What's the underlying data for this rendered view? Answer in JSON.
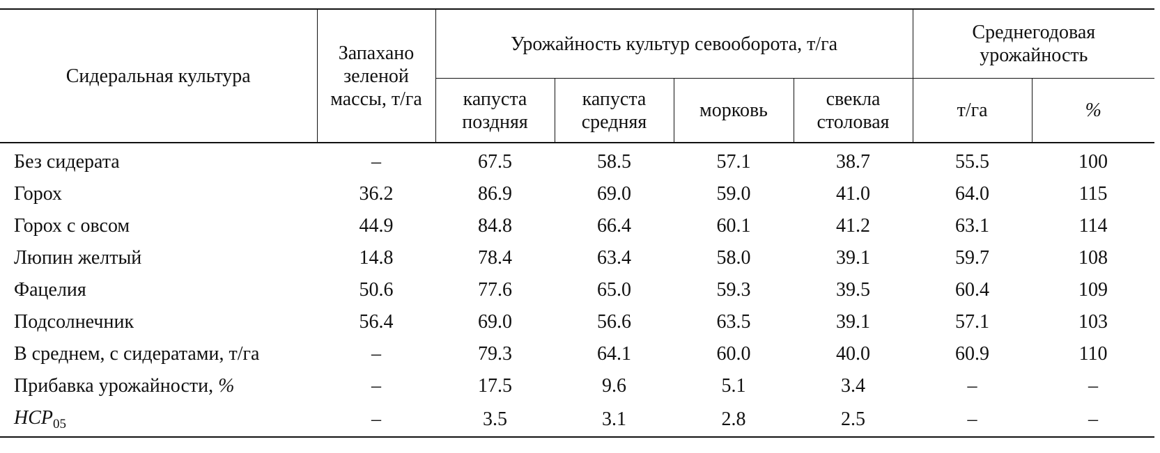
{
  "header": {
    "col_culture": "Сидеральная культура",
    "col_green_mass": "Запахано зеленой массы, т/га",
    "group_yield": "Урожайность культур севооборота, т/га",
    "group_avg": "Среднегодовая урожайность",
    "sub_cabbage_late": "капуста поздняя",
    "sub_cabbage_mid": "капуста средняя",
    "sub_carrot": "морковь",
    "sub_beet": "свекла столовая",
    "sub_tha": "т/га",
    "sub_pct": "%"
  },
  "rows": [
    {
      "name": "Без сидерата",
      "mass": "–",
      "c1": "67.5",
      "c2": "58.5",
      "c3": "57.1",
      "c4": "38.7",
      "avg": "55.5",
      "pct": "100"
    },
    {
      "name": "Горох",
      "mass": "36.2",
      "c1": "86.9",
      "c2": "69.0",
      "c3": "59.0",
      "c4": "41.0",
      "avg": "64.0",
      "pct": "115"
    },
    {
      "name": "Горох с овсом",
      "mass": "44.9",
      "c1": "84.8",
      "c2": "66.4",
      "c3": "60.1",
      "c4": "41.2",
      "avg": "63.1",
      "pct": "114"
    },
    {
      "name": "Люпин желтый",
      "mass": "14.8",
      "c1": "78.4",
      "c2": "63.4",
      "c3": "58.0",
      "c4": "39.1",
      "avg": "59.7",
      "pct": "108"
    },
    {
      "name": "Фацелия",
      "mass": "50.6",
      "c1": "77.6",
      "c2": "65.0",
      "c3": "59.3",
      "c4": "39.5",
      "avg": "60.4",
      "pct": "109"
    },
    {
      "name": "Подсолнечник",
      "mass": "56.4",
      "c1": "69.0",
      "c2": "56.6",
      "c3": "63.5",
      "c4": "39.1",
      "avg": "57.1",
      "pct": "103"
    },
    {
      "name": "В среднем, с сидератами, т/га",
      "mass": "–",
      "c1": "79.3",
      "c2": "64.1",
      "c3": "60.0",
      "c4": "40.0",
      "avg": "60.9",
      "pct": "110"
    },
    {
      "name": "Прибавка урожайности, ",
      "name_tail": "%",
      "mass": "–",
      "c1": "17.5",
      "c2": "9.6",
      "c3": "5.1",
      "c4": "3.4",
      "avg": "–",
      "pct": "–"
    },
    {
      "name": "НСР",
      "name_sub": "05",
      "mass": "–",
      "c1": "3.5",
      "c2": "3.1",
      "c3": "2.8",
      "c4": "2.5",
      "avg": "–",
      "pct": "–"
    }
  ]
}
